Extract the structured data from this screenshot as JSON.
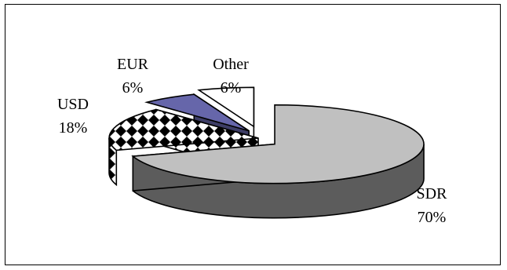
{
  "chart_data": {
    "type": "pie",
    "style": "3d-exploded",
    "categories": [
      "SDR",
      "USD",
      "EUR",
      "Other"
    ],
    "values": [
      70,
      18,
      6,
      6
    ],
    "labels": [
      {
        "name": "SDR",
        "pct": "70%"
      },
      {
        "name": "USD",
        "pct": "18%"
      },
      {
        "name": "EUR",
        "pct": "6%"
      },
      {
        "name": "Other",
        "pct": "6%"
      }
    ],
    "title": "",
    "legend": "none",
    "colors": {
      "SDR": "#c0c0c0",
      "USD": "#ffffff",
      "EUR": "#6666aa",
      "Other": "#ffffff",
      "USD_pattern": "#000000"
    }
  }
}
